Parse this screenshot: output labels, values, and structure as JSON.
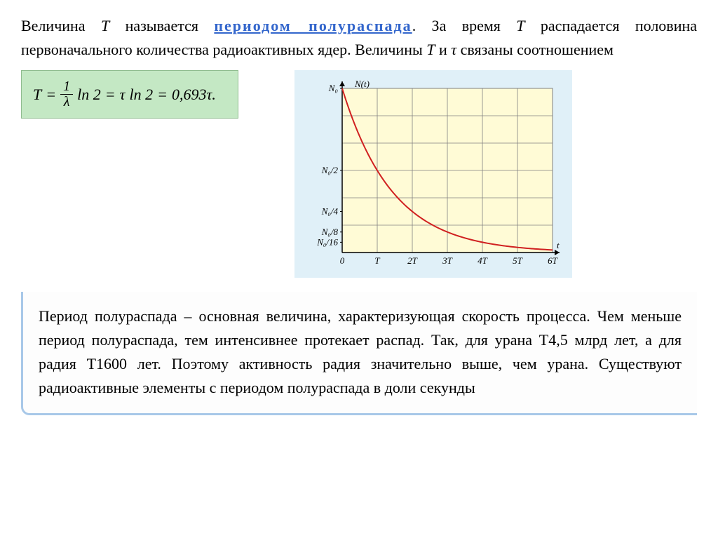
{
  "intro": {
    "pre": "Величина ",
    "T": "T",
    "mid1": " называется ",
    "highlight": "периодом полураспада",
    "post1": ". За время ",
    "T2": "T",
    "post2": " распадается половина первоначального количества радиоактивных ядер. Величины ",
    "T3": "T",
    "and": " и ",
    "tau": "τ",
    "post3": " связаны соотношением"
  },
  "equation": {
    "lhs_T": "T",
    "eq1": "=",
    "frac_num": "1",
    "frac_den": "λ",
    "ln2_a": "ln 2",
    "eq2": "=",
    "tau": "τ",
    "ln2_b": "ln 2",
    "eq3": "=",
    "val": "0,693τ."
  },
  "chart": {
    "type": "line",
    "background_color": "#e0f0f8",
    "plot_bg": "#fffbd6",
    "grid_color": "#808080",
    "curve_color": "#d02020",
    "axis_color": "#000000",
    "axis_label_font": 13,
    "x_ticks": [
      "0",
      "T",
      "2T",
      "3T",
      "4T",
      "5T",
      "6T"
    ],
    "y_ticks": [
      "N₀/16",
      "N₀/8",
      "N₀/4",
      "N₀/2",
      "N₀"
    ],
    "y_title": "N(t)",
    "x_title": "t",
    "x_values": [
      0,
      1,
      2,
      3,
      4,
      5,
      6
    ],
    "y_values": [
      1.0,
      0.5,
      0.25,
      0.125,
      0.0625,
      0.03125,
      0.015625
    ],
    "xlim": [
      0,
      6
    ],
    "ylim": [
      0,
      1
    ],
    "line_width": 2
  },
  "bottom": {
    "text": "Период полураспада – основная величина, характеризующая скорость процесса. Чем меньше период полураспада, тем интенсивнее протекает распад. Так, для урана T4,5 млрд лет, а для радия T1600 лет. Поэтому активность радия значительно выше, чем урана. Существуют радиоактивные элементы с периодом полураспада в доли секунды"
  }
}
